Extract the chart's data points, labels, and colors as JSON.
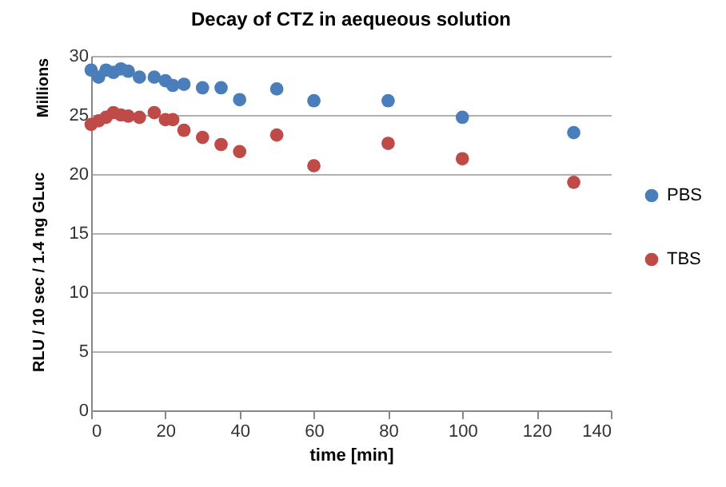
{
  "chart_data": {
    "type": "scatter",
    "title": "Decay of CTZ in aequeous solution",
    "xlabel": "time [min]",
    "ylabel": "RLU / 10 sec / 1.4 ng GLuc",
    "annotations": [
      "Millions"
    ],
    "x": [
      0,
      2,
      4,
      6,
      8,
      10,
      13,
      17,
      20,
      22,
      25,
      30,
      35,
      40,
      50,
      60,
      80,
      100,
      130
    ],
    "series": [
      {
        "name": "PBS",
        "color": "#4a7ebb",
        "values": [
          28.8,
          28.2,
          28.8,
          28.6,
          28.9,
          28.7,
          28.2,
          28.2,
          27.9,
          27.5,
          27.6,
          27.3,
          27.3,
          26.3,
          27.2,
          26.2,
          26.2,
          24.8,
          23.5
        ]
      },
      {
        "name": "TBS",
        "color": "#be4b48",
        "values": [
          24.2,
          24.5,
          24.8,
          25.2,
          25.0,
          24.9,
          24.8,
          25.2,
          24.6,
          24.6,
          23.7,
          23.1,
          22.5,
          21.9,
          23.3,
          20.7,
          22.6,
          21.3,
          19.3
        ]
      }
    ],
    "xlim": [
      0,
      140
    ],
    "xticks": [
      0,
      20,
      40,
      60,
      80,
      100,
      120,
      140
    ],
    "ylim": [
      0,
      30
    ],
    "yticks": [
      0,
      5,
      10,
      15,
      20,
      25,
      30
    ],
    "grid": "y",
    "legend": "right",
    "marker": "circle"
  }
}
